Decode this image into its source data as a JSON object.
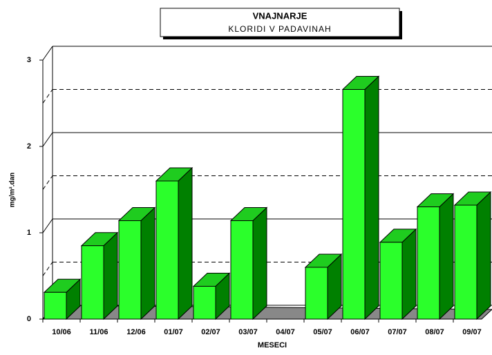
{
  "chart_data": {
    "type": "bar3d",
    "title": "VNAJNARJE",
    "subtitle": "KLORIDI V PADAVINAH",
    "x_label": "MESECI",
    "y_label": "mg/m².dan",
    "categories": [
      "10/06",
      "11/06",
      "12/06",
      "01/07",
      "02/07",
      "03/07",
      "04/07",
      "05/07",
      "06/07",
      "07/07",
      "08/07",
      "09/07"
    ],
    "values": [
      0.31,
      0.85,
      1.14,
      1.6,
      0.38,
      1.14,
      null,
      0.6,
      2.66,
      0.89,
      1.3,
      1.32
    ],
    "color": "#2bff2b",
    "ylim": [
      0,
      3
    ],
    "yticks": [
      0,
      1,
      2,
      3
    ],
    "minor_yticks": [
      0.5,
      1.5,
      2.5
    ],
    "grid": true
  }
}
